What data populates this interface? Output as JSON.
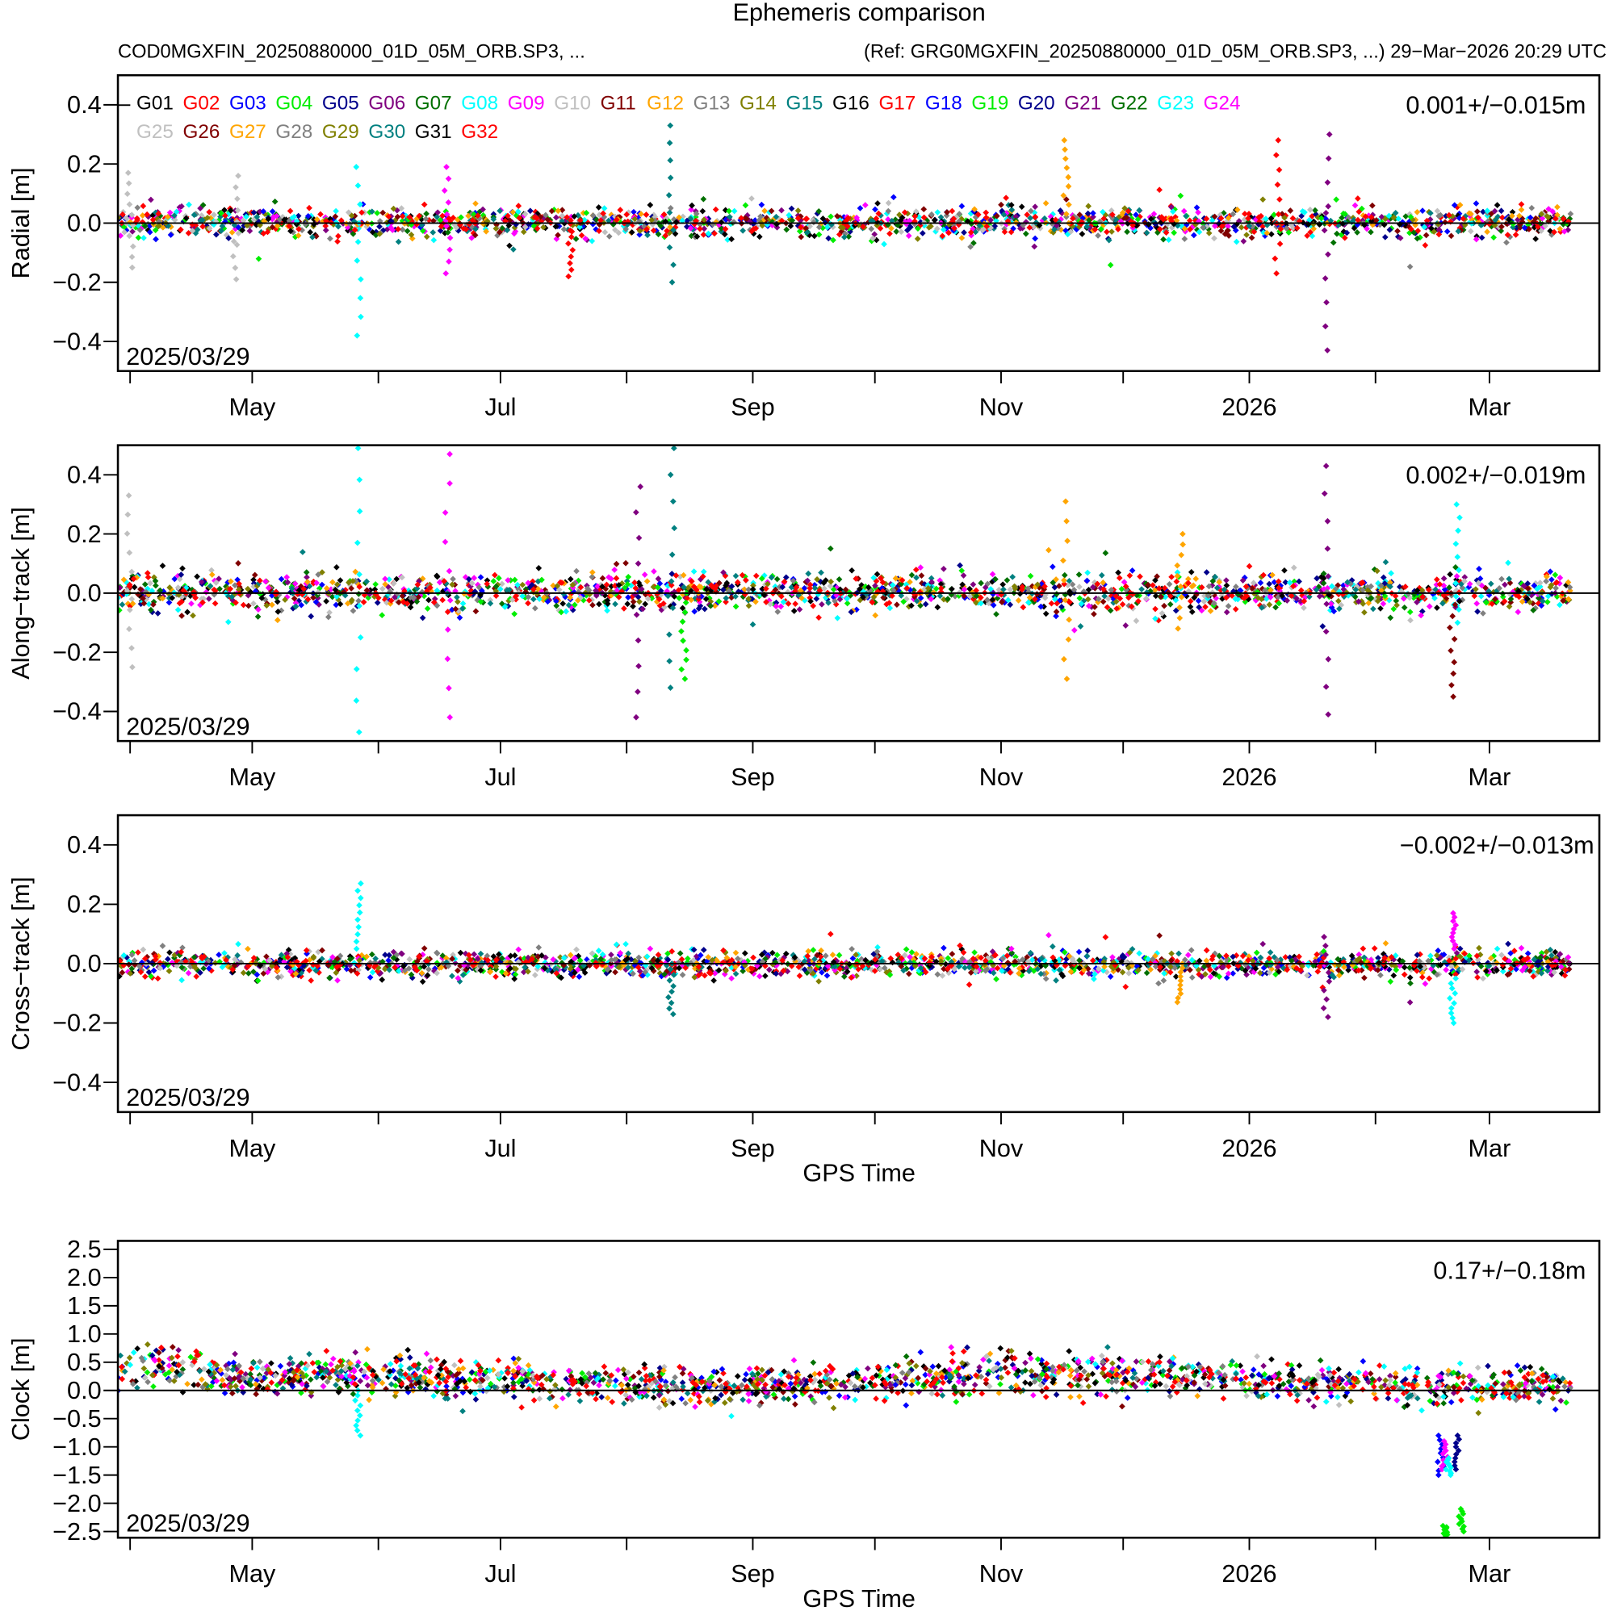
{
  "title": "Ephemeris comparison",
  "subtitle_left": "COD0MGXFIN_20250880000_01D_05M_ORB.SP3, ...",
  "subtitle_right": "(Ref: GRG0MGXFIN_20250880000_01D_05M_ORB.SP3, ...) 29−Mar−2026 20:29 UTC",
  "chart_data": {
    "type": "scatter",
    "xlabel": "GPS Time",
    "x_units": "days since 2025/03/29",
    "xlim": [
      0,
      364
    ],
    "x_ticks": [
      {
        "day": 3,
        "label": ""
      },
      {
        "day": 33,
        "label": "May"
      },
      {
        "day": 64,
        "label": ""
      },
      {
        "day": 94,
        "label": "Jul"
      },
      {
        "day": 125,
        "label": ""
      },
      {
        "day": 156,
        "label": "Sep"
      },
      {
        "day": 186,
        "label": ""
      },
      {
        "day": 217,
        "label": "Nov"
      },
      {
        "day": 247,
        "label": ""
      },
      {
        "day": 278,
        "label": "2026"
      },
      {
        "day": 309,
        "label": ""
      },
      {
        "day": 337,
        "label": "Mar"
      }
    ],
    "start_label": "2025/03/29",
    "legend": {
      "placement": "top-left",
      "entries": [
        "G01",
        "G02",
        "G03",
        "G04",
        "G05",
        "G06",
        "G07",
        "G08",
        "G09",
        "G10",
        "G11",
        "G12",
        "G13",
        "G14",
        "G15",
        "G16",
        "G17",
        "G18",
        "G19",
        "G20",
        "G21",
        "G22",
        "G23",
        "G24",
        "G25",
        "G26",
        "G27",
        "G28",
        "G29",
        "G30",
        "G31",
        "G32"
      ],
      "colors": [
        "#000000",
        "#ff0000",
        "#0000ff",
        "#00ee00",
        "#00008b",
        "#800080",
        "#007000",
        "#00ffff",
        "#ff00ff",
        "#c0c0c0",
        "#800000",
        "#ffa500",
        "#808080",
        "#808000",
        "#008080",
        "#000000",
        "#ff0000",
        "#0000ff",
        "#00ee00",
        "#00008b",
        "#800080",
        "#007000",
        "#00ffff",
        "#ff00ff",
        "#c0c0c0",
        "#800000",
        "#ffa500",
        "#808080",
        "#808000",
        "#008080",
        "#000000",
        "#ff0000"
      ]
    },
    "panels": [
      {
        "ylabel": "Radial [m]",
        "stats": "0.001+/−0.015m",
        "ylim": [
          -0.5,
          0.5
        ],
        "yticks": [
          "0.4",
          "0.2",
          "0.0",
          "−0.2",
          "−0.4"
        ],
        "ytick_values": [
          0.4,
          0.2,
          0,
          -0.2,
          -0.4
        ],
        "mean": 0.001,
        "sigma": 0.015,
        "outliers": [
          {
            "sat": 8,
            "day": 59,
            "from": -0.38,
            "to": 0.19
          },
          {
            "sat": 9,
            "day": 81,
            "from": -0.17,
            "to": 0.19
          },
          {
            "sat": 30,
            "day": 136,
            "from": -0.2,
            "to": 0.33
          },
          {
            "sat": 2,
            "day": 111,
            "from": -0.18,
            "to": 0.02
          },
          {
            "sat": 21,
            "day": 297,
            "from": -0.43,
            "to": 0.3
          },
          {
            "sat": 17,
            "day": 285,
            "from": -0.17,
            "to": 0.28
          },
          {
            "sat": 12,
            "day": 233,
            "from": 0.0,
            "to": 0.28
          },
          {
            "sat": 10,
            "day": 3,
            "from": -0.15,
            "to": 0.17
          },
          {
            "sat": 10,
            "day": 29,
            "from": -0.19,
            "to": 0.16
          }
        ]
      },
      {
        "ylabel": "Along−track [m]",
        "stats": "0.002+/−0.019m",
        "ylim": [
          -0.5,
          0.5
        ],
        "yticks": [
          "0.4",
          "0.2",
          "0.0",
          "−0.2",
          "−0.4"
        ],
        "ytick_values": [
          0.4,
          0.2,
          0,
          -0.2,
          -0.4
        ],
        "mean": 0.002,
        "sigma": 0.019,
        "outliers": [
          {
            "sat": 8,
            "day": 59,
            "from": -0.47,
            "to": 0.49
          },
          {
            "sat": 9,
            "day": 81,
            "from": -0.42,
            "to": 0.47
          },
          {
            "sat": 6,
            "day": 128,
            "from": -0.42,
            "to": 0.36
          },
          {
            "sat": 15,
            "day": 136,
            "from": -0.32,
            "to": 0.49
          },
          {
            "sat": 4,
            "day": 139,
            "from": -0.29,
            "to": 0.0
          },
          {
            "sat": 12,
            "day": 233,
            "from": -0.29,
            "to": 0.31
          },
          {
            "sat": 21,
            "day": 297,
            "from": -0.41,
            "to": 0.43
          },
          {
            "sat": 23,
            "day": 329,
            "from": -0.1,
            "to": 0.3
          },
          {
            "sat": 26,
            "day": 328,
            "from": -0.35,
            "to": 0.0
          },
          {
            "sat": 10,
            "day": 3,
            "from": -0.25,
            "to": 0.33
          },
          {
            "sat": 12,
            "day": 261,
            "from": -0.12,
            "to": 0.2
          }
        ]
      },
      {
        "ylabel": "Cross−track [m]",
        "stats": "−0.002+/−0.013m",
        "ylim": [
          -0.5,
          0.5
        ],
        "yticks": [
          "0.4",
          "0.2",
          "0.0",
          "−0.2",
          "−0.4"
        ],
        "ytick_values": [
          0.4,
          0.2,
          0,
          -0.2,
          -0.4
        ],
        "mean": -0.002,
        "sigma": 0.013,
        "outliers": [
          {
            "sat": 8,
            "day": 59,
            "from": 0.05,
            "to": 0.27
          },
          {
            "sat": 15,
            "day": 136,
            "from": -0.17,
            "to": 0.0
          },
          {
            "sat": 9,
            "day": 328,
            "from": 0.05,
            "to": 0.17
          },
          {
            "sat": 23,
            "day": 328,
            "from": -0.2,
            "to": -0.05
          },
          {
            "sat": 12,
            "day": 261,
            "from": -0.13,
            "to": 0.0
          },
          {
            "sat": 21,
            "day": 297,
            "from": -0.18,
            "to": 0.09
          }
        ]
      },
      {
        "ylabel": "Clock [m]",
        "stats": "0.17+/−0.18m",
        "ylim": [
          -2.61,
          2.65
        ],
        "yticks": [
          "2.5",
          "2.0",
          "1.5",
          "1.0",
          "0.5",
          "0.0",
          "−0.5",
          "−1.0",
          "−1.5",
          "−2.0",
          "−2.5"
        ],
        "ytick_values": [
          2.5,
          2.0,
          1.5,
          1.0,
          0.5,
          0,
          -0.5,
          -1.0,
          -1.5,
          -2.0,
          -2.5
        ],
        "mean": 0.17,
        "sigma": 0.18,
        "outliers": [
          {
            "sat": 8,
            "day": 59,
            "from": -0.8,
            "to": 0.0
          },
          {
            "sat": 3,
            "day": 325,
            "from": -1.5,
            "to": -0.8
          },
          {
            "sat": 9,
            "day": 326,
            "from": -1.4,
            "to": -0.9
          },
          {
            "sat": 20,
            "day": 329,
            "from": -1.4,
            "to": -0.8
          },
          {
            "sat": 23,
            "day": 327,
            "from": -1.5,
            "to": -1.2
          },
          {
            "sat": 4,
            "day": 326,
            "from": -2.6,
            "to": -2.4
          },
          {
            "sat": 19,
            "day": 330,
            "from": -2.5,
            "to": -2.1
          }
        ]
      }
    ]
  }
}
